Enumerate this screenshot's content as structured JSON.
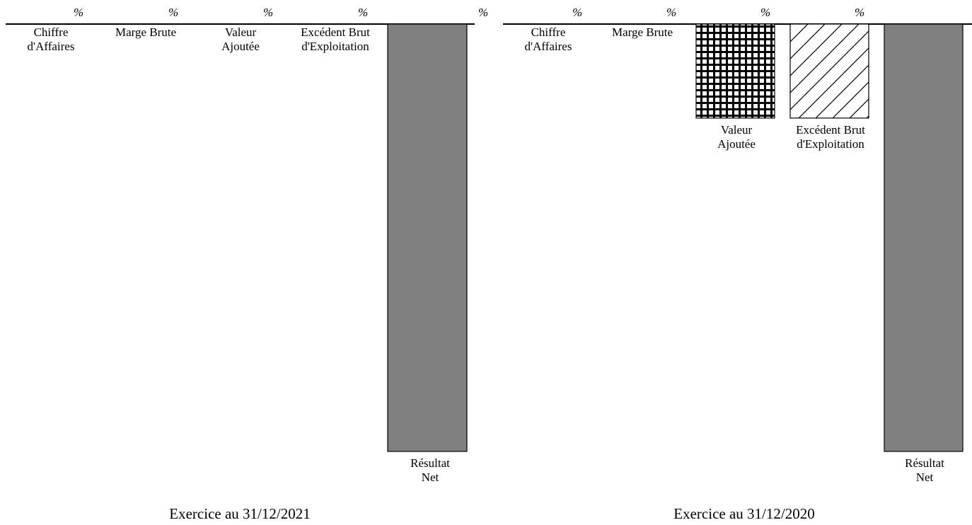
{
  "chart_data": [
    {
      "type": "bar",
      "orientation": "downward",
      "unit_marker": "%",
      "categories": [
        "Chiffre\nd'Affaires",
        "Marge Brute",
        "Valeur\nAjoutée",
        "Excédent Brut\nd'Exploitation",
        "Résultat\nNet"
      ],
      "values": [
        0,
        0,
        0,
        0,
        -100
      ],
      "bar_styles": [
        "gray",
        "gray",
        "grid",
        "hatch",
        "gray"
      ],
      "ylim": [
        -100,
        0
      ],
      "title": "Exercice au 31/12/2021"
    },
    {
      "type": "bar",
      "orientation": "downward",
      "unit_marker": "%",
      "categories": [
        "Chiffre\nd'Affaires",
        "Marge Brute",
        "Valeur\nAjoutée",
        "Excédent Brut\nd'Exploitation",
        "Résultat\nNet"
      ],
      "values": [
        0,
        0,
        -22,
        -22,
        -100
      ],
      "bar_styles": [
        "gray",
        "gray",
        "grid",
        "hatch",
        "gray"
      ],
      "ylim": [
        -100,
        0
      ],
      "title": "Exercice au 31/12/2020"
    }
  ],
  "colors": {
    "bar_fill": "#808080",
    "stroke": "#000000",
    "background": "#ffffff"
  }
}
